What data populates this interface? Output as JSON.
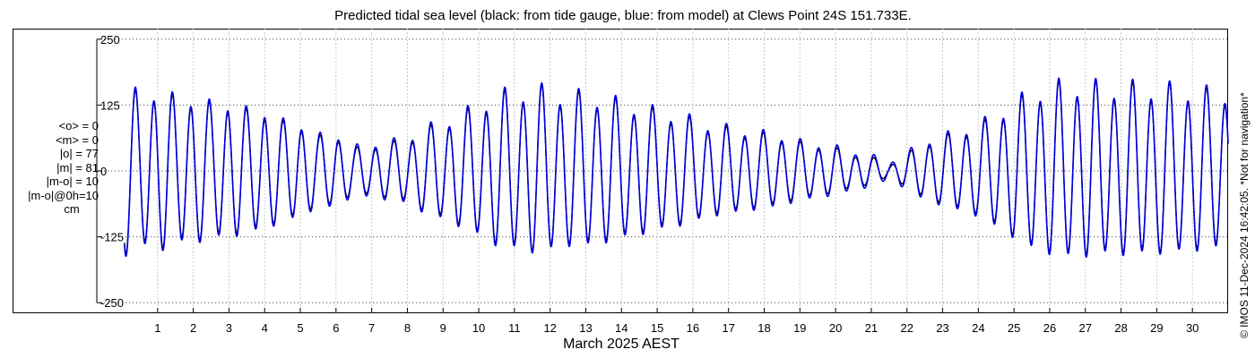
{
  "chart_data": {
    "type": "line",
    "title": "Predicted tidal sea level (black: from tide gauge, blue: from model) at Clews Point 24S 151.733E.",
    "xlabel": "March 2025 AEST",
    "ylabel": "",
    "units": "cm",
    "xlim": [
      0,
      31
    ],
    "ylim": [
      -270,
      270
    ],
    "yticks": [
      250,
      125,
      0,
      -125,
      -250
    ],
    "ytick_labels": [
      "250",
      "125",
      "0",
      "-125",
      "-250"
    ],
    "xticks": [
      1,
      2,
      3,
      4,
      5,
      6,
      7,
      8,
      9,
      10,
      11,
      12,
      13,
      14,
      15,
      16,
      17,
      18,
      19,
      20,
      21,
      22,
      23,
      24,
      25,
      26,
      27,
      28,
      29,
      30
    ],
    "xtick_labels": [
      "1",
      "2",
      "3",
      "4",
      "5",
      "6",
      "7",
      "8",
      "9",
      "10",
      "11",
      "12",
      "13",
      "14",
      "15",
      "16",
      "17",
      "18",
      "19",
      "20",
      "21",
      "22",
      "23",
      "24",
      "25",
      "26",
      "27",
      "28",
      "29",
      "30"
    ],
    "grid": true,
    "stats": [
      "<o> = 0",
      "<m> = 0",
      "|o| = 77",
      "|m| = 81",
      "|m-o| = 10",
      "|m-o|@0h=10",
      "cm"
    ],
    "series": [
      {
        "name": "tide gauge",
        "color": "#000000",
        "x": [
          0.0,
          0.5,
          1.0,
          1.5,
          2.0,
          2.5,
          3.0,
          3.5,
          4.0,
          4.5,
          5.0,
          5.5,
          6.0,
          6.5,
          7.0,
          7.5,
          8.0,
          8.5,
          9.0,
          9.5,
          10.0,
          10.5,
          11.0,
          11.5,
          12.0,
          12.5,
          13.0,
          13.5,
          14.0,
          14.5,
          15.0,
          15.5,
          16.0,
          16.5,
          17.0,
          17.5,
          18.0,
          18.5,
          19.0,
          19.5,
          20.0,
          20.5,
          21.0,
          21.5,
          22.0,
          22.5,
          23.0,
          23.5,
          24.0,
          24.5,
          25.0,
          25.5,
          26.0,
          26.5,
          27.0,
          27.5,
          28.0,
          28.5,
          29.0,
          29.5,
          30.0,
          30.5,
          31.0
        ],
        "y": [
          160,
          130,
          150,
          125,
          135,
          115,
          125,
          105,
          110,
          85,
          85,
          60,
          65,
          40,
          45,
          50,
          55,
          75,
          85,
          100,
          115,
          135,
          140,
          148,
          142,
          135,
          135,
          130,
          120,
          115,
          105,
          100,
          90,
          80,
          75,
          70,
          65,
          60,
          50,
          45,
          40,
          30,
          25,
          10,
          30,
          50,
          60,
          70,
          80,
          100,
          120,
          140,
          150,
          155,
          155,
          150,
          152,
          150,
          150,
          148,
          145,
          140,
          140
        ]
      },
      {
        "name": "model",
        "color": "#0000e0",
        "x": [
          0.0,
          0.5,
          1.0,
          1.5,
          2.0,
          2.5,
          3.0,
          3.5,
          4.0,
          4.5,
          5.0,
          5.5,
          6.0,
          6.5,
          7.0,
          7.5,
          8.0,
          8.5,
          9.0,
          9.5,
          10.0,
          10.5,
          11.0,
          11.5,
          12.0,
          12.5,
          13.0,
          13.5,
          14.0,
          14.5,
          15.0,
          15.5,
          16.0,
          16.5,
          17.0,
          17.5,
          18.0,
          18.5,
          19.0,
          19.5,
          20.0,
          20.5,
          21.0,
          21.5,
          22.0,
          22.5,
          23.0,
          23.5,
          24.0,
          24.5,
          25.0,
          25.5,
          26.0,
          26.5,
          27.0,
          27.5,
          28.0,
          28.5,
          29.0,
          29.5,
          30.0,
          30.5,
          31.0
        ],
        "y": [
          165,
          135,
          155,
          130,
          140,
          120,
          130,
          110,
          115,
          90,
          90,
          65,
          70,
          45,
          50,
          55,
          60,
          80,
          90,
          105,
          120,
          140,
          145,
          152,
          147,
          140,
          140,
          135,
          125,
          120,
          110,
          105,
          95,
          85,
          80,
          75,
          70,
          65,
          55,
          50,
          45,
          35,
          30,
          15,
          35,
          55,
          65,
          75,
          85,
          105,
          125,
          145,
          155,
          160,
          160,
          155,
          157,
          155,
          155,
          152,
          150,
          145,
          145
        ]
      }
    ]
  },
  "credit": "© IMOS 11-Dec-2024 16:42:05. *Not for navigation*"
}
